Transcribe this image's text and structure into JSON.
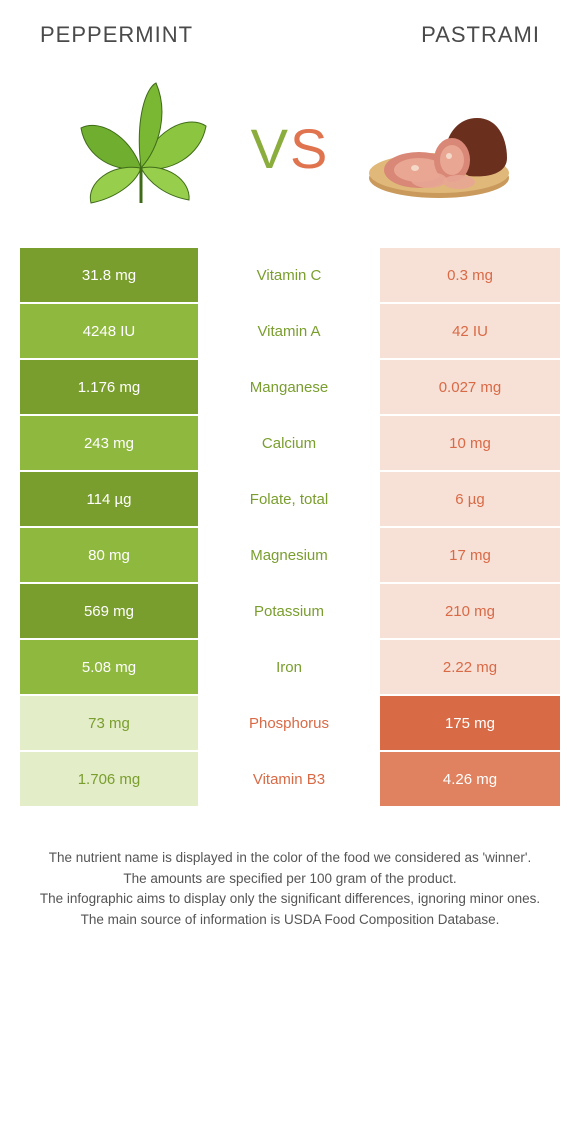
{
  "header": {
    "left": "Peppermint",
    "right": "Pastrami"
  },
  "vs": {
    "v": "V",
    "s": "S"
  },
  "colors": {
    "green_dark": "#7a9e2e",
    "green_light": "#8fb83f",
    "green_pale": "#e3edc7",
    "orange_dark": "#d96a46",
    "orange_light": "#e0825f",
    "orange_pale": "#f7e0d6"
  },
  "rows": [
    {
      "nutrient": "Vitamin C",
      "left": "31.8 mg",
      "right": "0.3 mg",
      "winner": "left"
    },
    {
      "nutrient": "Vitamin A",
      "left": "4248 IU",
      "right": "42 IU",
      "winner": "left"
    },
    {
      "nutrient": "Manganese",
      "left": "1.176 mg",
      "right": "0.027 mg",
      "winner": "left"
    },
    {
      "nutrient": "Calcium",
      "left": "243 mg",
      "right": "10 mg",
      "winner": "left"
    },
    {
      "nutrient": "Folate, total",
      "left": "114 µg",
      "right": "6 µg",
      "winner": "left"
    },
    {
      "nutrient": "Magnesium",
      "left": "80 mg",
      "right": "17 mg",
      "winner": "left"
    },
    {
      "nutrient": "Potassium",
      "left": "569 mg",
      "right": "210 mg",
      "winner": "left"
    },
    {
      "nutrient": "Iron",
      "left": "5.08 mg",
      "right": "2.22 mg",
      "winner": "left"
    },
    {
      "nutrient": "Phosphorus",
      "left": "73 mg",
      "right": "175 mg",
      "winner": "right"
    },
    {
      "nutrient": "Vitamin B3",
      "left": "1.706 mg",
      "right": "4.26 mg",
      "winner": "right"
    }
  ],
  "footer": {
    "l1": "The nutrient name is displayed in the color of the food we considered as 'winner'.",
    "l2": "The amounts are specified per 100 gram of the product.",
    "l3": "The infographic aims to display only the significant differences, ignoring minor ones.",
    "l4": "The main source of information is USDA Food Composition Database."
  }
}
